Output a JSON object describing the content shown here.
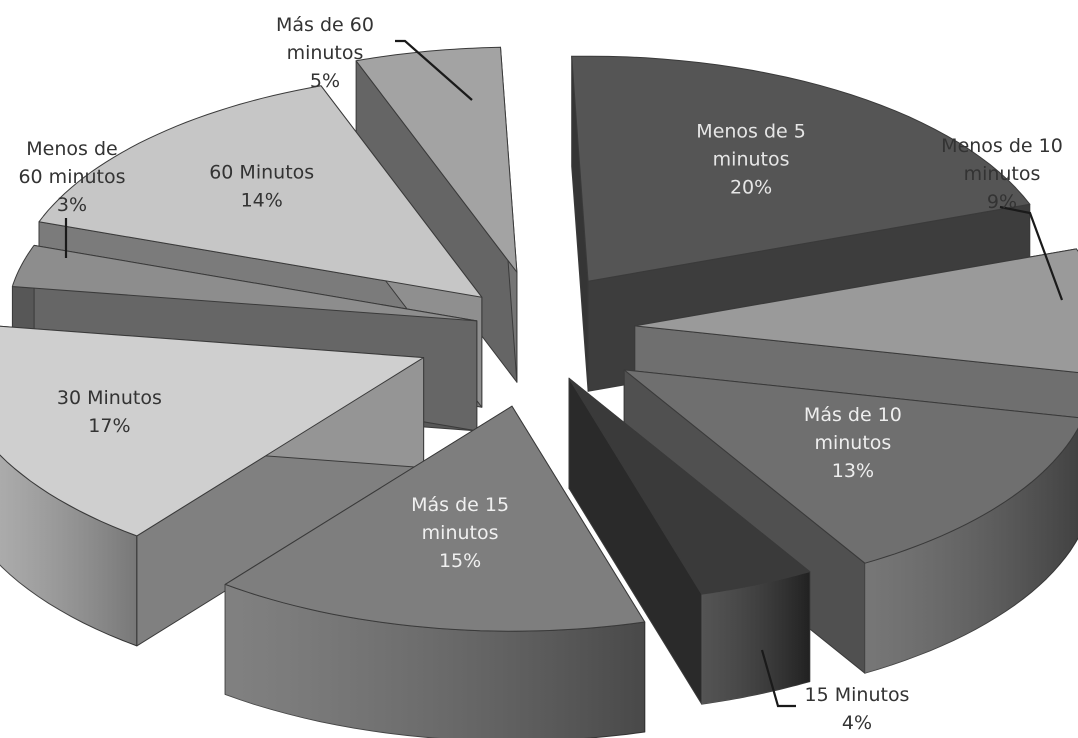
{
  "chart_data": {
    "type": "pie",
    "title": "",
    "categories": [
      "Menos de 5 minutos",
      "Menos de 10 minutos",
      "Más de 10 minutos",
      "15 Minutos",
      "Más de 15 minutos",
      "30 Minutos",
      "Menos de 60 minutos",
      "60 Minutos",
      "Más de 60 minutos"
    ],
    "values": [
      20,
      9,
      13,
      4,
      15,
      17,
      3,
      14,
      5
    ],
    "value_suffix": "%",
    "three_d": true,
    "exploded": true,
    "colors": [
      "#555555",
      "#9a9a9a",
      "#6f6f6f",
      "#3a3a3a",
      "#7e7e7e",
      "#cfcfcf",
      "#8d8d8d",
      "#c6c6c6",
      "#a3a3a3"
    ],
    "label_colors": [
      "#e6e6e6",
      "#333333",
      "#eeeeee",
      "#333333",
      "#f0f0f0",
      "#333333",
      "#333333",
      "#333333",
      "#333333"
    ],
    "labels": [
      {
        "lines": [
          "Menos de 5",
          "minutos"
        ],
        "pct": "20%"
      },
      {
        "lines": [
          "Menos de 10",
          "minutos"
        ],
        "pct": "9%"
      },
      {
        "lines": [
          "Más de 10",
          "minutos"
        ],
        "pct": "13%"
      },
      {
        "lines": [
          "15 Minutos"
        ],
        "pct": "4%"
      },
      {
        "lines": [
          "Más de 15",
          "minutos"
        ],
        "pct": "15%"
      },
      {
        "lines": [
          "30 Minutos"
        ],
        "pct": "17%"
      },
      {
        "lines": [
          "Menos de",
          "60 minutos"
        ],
        "pct": "3%"
      },
      {
        "lines": [
          "60 Minutos"
        ],
        "pct": "14%"
      },
      {
        "lines": [
          "Más de 60",
          "minutos"
        ],
        "pct": "5%"
      }
    ],
    "legend": "none",
    "grid": false
  }
}
